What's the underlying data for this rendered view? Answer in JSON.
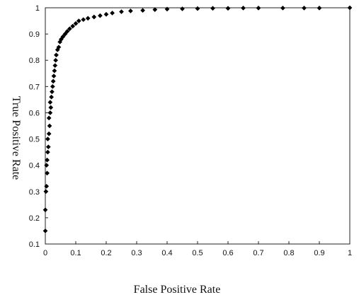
{
  "chart_data": {
    "type": "scatter",
    "title": "",
    "xlabel": "False Positive Rate",
    "ylabel": "True Positive Rate",
    "xlim": [
      0,
      1
    ],
    "ylim": [
      0.1,
      1
    ],
    "xticks": [
      "0",
      "0.1",
      "0.2",
      "0.3",
      "0.4",
      "0.5",
      "0.6",
      "0.7",
      "0.8",
      "0.9",
      "1"
    ],
    "yticks": [
      "0.1",
      "0.2",
      "0.3",
      "0.4",
      "0.5",
      "0.6",
      "0.7",
      "0.8",
      "0.9",
      "1"
    ],
    "grid": false,
    "legend": "none",
    "marker_color": "#000000",
    "marker": "diamond",
    "series": [
      {
        "name": "",
        "points": [
          [
            0.0,
            0.15
          ],
          [
            0.0,
            0.23
          ],
          [
            0.002,
            0.3
          ],
          [
            0.004,
            0.32
          ],
          [
            0.006,
            0.37
          ],
          [
            0.004,
            0.4
          ],
          [
            0.006,
            0.42
          ],
          [
            0.008,
            0.45
          ],
          [
            0.01,
            0.47
          ],
          [
            0.008,
            0.5
          ],
          [
            0.012,
            0.52
          ],
          [
            0.014,
            0.55
          ],
          [
            0.012,
            0.58
          ],
          [
            0.016,
            0.6
          ],
          [
            0.018,
            0.62
          ],
          [
            0.016,
            0.64
          ],
          [
            0.02,
            0.66
          ],
          [
            0.022,
            0.68
          ],
          [
            0.024,
            0.7
          ],
          [
            0.026,
            0.72
          ],
          [
            0.028,
            0.74
          ],
          [
            0.03,
            0.76
          ],
          [
            0.032,
            0.78
          ],
          [
            0.034,
            0.8
          ],
          [
            0.036,
            0.82
          ],
          [
            0.04,
            0.84
          ],
          [
            0.044,
            0.85
          ],
          [
            0.048,
            0.87
          ],
          [
            0.052,
            0.88
          ],
          [
            0.058,
            0.89
          ],
          [
            0.065,
            0.9
          ],
          [
            0.072,
            0.91
          ],
          [
            0.08,
            0.92
          ],
          [
            0.09,
            0.93
          ],
          [
            0.1,
            0.94
          ],
          [
            0.11,
            0.95
          ],
          [
            0.125,
            0.955
          ],
          [
            0.14,
            0.96
          ],
          [
            0.16,
            0.965
          ],
          [
            0.18,
            0.97
          ],
          [
            0.2,
            0.975
          ],
          [
            0.22,
            0.98
          ],
          [
            0.25,
            0.985
          ],
          [
            0.28,
            0.988
          ],
          [
            0.32,
            0.99
          ],
          [
            0.36,
            0.993
          ],
          [
            0.4,
            0.995
          ],
          [
            0.45,
            0.996
          ],
          [
            0.5,
            0.997
          ],
          [
            0.55,
            0.998
          ],
          [
            0.6,
            0.998
          ],
          [
            0.65,
            0.999
          ],
          [
            0.7,
            0.999
          ],
          [
            0.78,
            0.999
          ],
          [
            0.85,
            0.999
          ],
          [
            0.9,
            0.999
          ],
          [
            1.0,
            1.0
          ]
        ]
      }
    ]
  }
}
